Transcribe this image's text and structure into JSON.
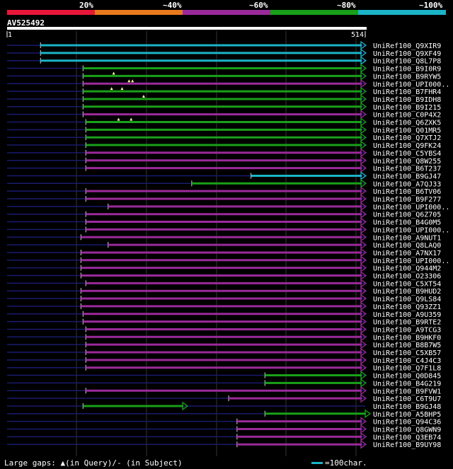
{
  "scale": {
    "labels": [
      "20%",
      "~40%",
      "~60%",
      "~80%",
      "~100%"
    ],
    "colors": [
      "#e8173a",
      "#e87a1e",
      "#9a2a9a",
      "#19a019",
      "#1ab4c8"
    ]
  },
  "query": {
    "id": "AV525492",
    "start": "1",
    "end": "514",
    "length": 514
  },
  "colors": {
    "cyan": "#1ab4c8",
    "green": "#19a019",
    "purple": "#9a2a9a",
    "navy": "#1a1a6e",
    "gap": "#ffff99"
  },
  "hits": [
    {
      "name": "UniRef100_Q9XIR9",
      "color": "cyan",
      "start": 48,
      "end": 514,
      "gaps": []
    },
    {
      "name": "UniRef100_Q9XF49",
      "color": "cyan",
      "start": 48,
      "end": 514,
      "gaps": []
    },
    {
      "name": "UniRef100_Q8L7P8",
      "color": "cyan",
      "start": 48,
      "end": 514,
      "gaps": []
    },
    {
      "name": "UniRef100_B9I0R9",
      "color": "green",
      "start": 109,
      "end": 514,
      "gaps": []
    },
    {
      "name": "UniRef100_B9RYW5",
      "color": "green",
      "start": 109,
      "end": 514,
      "gaps": [
        153
      ]
    },
    {
      "name": "UniRef100_UPI000..",
      "color": "purple",
      "start": 109,
      "end": 514,
      "gaps": [
        175,
        180
      ]
    },
    {
      "name": "UniRef100_B7FHR4",
      "color": "green",
      "start": 109,
      "end": 514,
      "gaps": [
        150,
        165
      ]
    },
    {
      "name": "UniRef100_B9IDH8",
      "color": "green",
      "start": 109,
      "end": 514,
      "gaps": [
        196
      ]
    },
    {
      "name": "UniRef100_B9I215",
      "color": "green",
      "start": 109,
      "end": 514,
      "gaps": []
    },
    {
      "name": "UniRef100_C0P4X2",
      "color": "purple",
      "start": 109,
      "end": 514,
      "gaps": []
    },
    {
      "name": "UniRef100_Q6ZXK5",
      "color": "green",
      "start": 113,
      "end": 514,
      "gaps": [
        160,
        178
      ]
    },
    {
      "name": "UniRef100_Q01MR5",
      "color": "green",
      "start": 113,
      "end": 514,
      "gaps": []
    },
    {
      "name": "UniRef100_Q7XTJ2",
      "color": "green",
      "start": 113,
      "end": 514,
      "gaps": []
    },
    {
      "name": "UniRef100_Q9FK24",
      "color": "green",
      "start": 113,
      "end": 514,
      "gaps": []
    },
    {
      "name": "UniRef100_C5YBS4",
      "color": "purple",
      "start": 113,
      "end": 514,
      "gaps": []
    },
    {
      "name": "UniRef100_Q8W255",
      "color": "purple",
      "start": 113,
      "end": 514,
      "gaps": []
    },
    {
      "name": "UniRef100_B6T237",
      "color": "purple",
      "start": 113,
      "end": 514,
      "gaps": []
    },
    {
      "name": "UniRef100_B9GJ47",
      "color": "cyan",
      "start": 350,
      "end": 514,
      "gaps": []
    },
    {
      "name": "UniRef100_A7QJ33",
      "color": "green",
      "start": 265,
      "end": 514,
      "gaps": []
    },
    {
      "name": "UniRef100_B6TV06",
      "color": "purple",
      "start": 113,
      "end": 514,
      "gaps": []
    },
    {
      "name": "UniRef100_B9F277",
      "color": "purple",
      "start": 113,
      "end": 514,
      "gaps": []
    },
    {
      "name": "UniRef100_UPI000..",
      "color": "purple",
      "start": 145,
      "end": 514,
      "gaps": []
    },
    {
      "name": "UniRef100_Q6Z705",
      "color": "purple",
      "start": 113,
      "end": 514,
      "gaps": []
    },
    {
      "name": "UniRef100_B4G0M5",
      "color": "purple",
      "start": 113,
      "end": 514,
      "gaps": []
    },
    {
      "name": "UniRef100_UPI000..",
      "color": "purple",
      "start": 113,
      "end": 514,
      "gaps": []
    },
    {
      "name": "UniRef100_A9NUT1",
      "color": "purple",
      "start": 106,
      "end": 514,
      "gaps": []
    },
    {
      "name": "UniRef100_Q8LAQ0",
      "color": "purple",
      "start": 145,
      "end": 514,
      "gaps": []
    },
    {
      "name": "UniRef100_A7NX17",
      "color": "purple",
      "start": 106,
      "end": 514,
      "gaps": []
    },
    {
      "name": "UniRef100_UPI000..",
      "color": "purple",
      "start": 106,
      "end": 514,
      "gaps": []
    },
    {
      "name": "UniRef100_Q944M2",
      "color": "purple",
      "start": 106,
      "end": 514,
      "gaps": []
    },
    {
      "name": "UniRef100_O23306",
      "color": "purple",
      "start": 106,
      "end": 514,
      "gaps": []
    },
    {
      "name": "UniRef100_C5XT54",
      "color": "purple",
      "start": 113,
      "end": 514,
      "gaps": []
    },
    {
      "name": "UniRef100_B9HUD2",
      "color": "purple",
      "start": 106,
      "end": 514,
      "gaps": []
    },
    {
      "name": "UniRef100_Q9LS84",
      "color": "purple",
      "start": 106,
      "end": 514,
      "gaps": []
    },
    {
      "name": "UniRef100_Q93ZZ1",
      "color": "purple",
      "start": 106,
      "end": 514,
      "gaps": []
    },
    {
      "name": "UniRef100_A9U359",
      "color": "purple",
      "start": 109,
      "end": 514,
      "gaps": []
    },
    {
      "name": "UniRef100_B9RTE2",
      "color": "purple",
      "start": 109,
      "end": 514,
      "gaps": []
    },
    {
      "name": "UniRef100_A9TCG3",
      "color": "purple",
      "start": 113,
      "end": 514,
      "gaps": []
    },
    {
      "name": "UniRef100_B9HKF0",
      "color": "purple",
      "start": 113,
      "end": 514,
      "gaps": []
    },
    {
      "name": "UniRef100_B8B7W5",
      "color": "purple",
      "start": 113,
      "end": 514,
      "gaps": []
    },
    {
      "name": "UniRef100_C5XB57",
      "color": "purple",
      "start": 113,
      "end": 514,
      "gaps": []
    },
    {
      "name": "UniRef100_C4J4C3",
      "color": "purple",
      "start": 113,
      "end": 514,
      "gaps": []
    },
    {
      "name": "UniRef100_Q7F1L8",
      "color": "purple",
      "start": 113,
      "end": 514,
      "gaps": []
    },
    {
      "name": "UniRef100_Q0D845",
      "color": "green",
      "start": 370,
      "end": 514,
      "gaps": []
    },
    {
      "name": "UniRef100_B4G219",
      "color": "green",
      "start": 370,
      "end": 514,
      "gaps": []
    },
    {
      "name": "UniRef100_B9FVW1",
      "color": "purple",
      "start": 113,
      "end": 514,
      "gaps": []
    },
    {
      "name": "UniRef100_C6T9U7",
      "color": "purple",
      "start": 318,
      "end": 514,
      "gaps": []
    },
    {
      "name": "UniRef100_B9GJ48",
      "color": "green",
      "start": 109,
      "end": 258,
      "gaps": []
    },
    {
      "name": "UniRef100_A5BHP5",
      "color": "green",
      "start": 370,
      "end": 520,
      "gaps": []
    },
    {
      "name": "UniRef100_Q94C36",
      "color": "purple",
      "start": 330,
      "end": 514,
      "gaps": []
    },
    {
      "name": "UniRef100_Q8GWN9",
      "color": "purple",
      "start": 330,
      "end": 514,
      "gaps": []
    },
    {
      "name": "UniRef100_Q3EB74",
      "color": "purple",
      "start": 330,
      "end": 514,
      "gaps": []
    },
    {
      "name": "UniRef100_B9UY98",
      "color": "purple",
      "start": 330,
      "end": 514,
      "gaps": []
    }
  ],
  "footer": {
    "legend_text": "Large gaps: ▲(in Query)/- (in Subject)",
    "scale_text": "=100char."
  }
}
